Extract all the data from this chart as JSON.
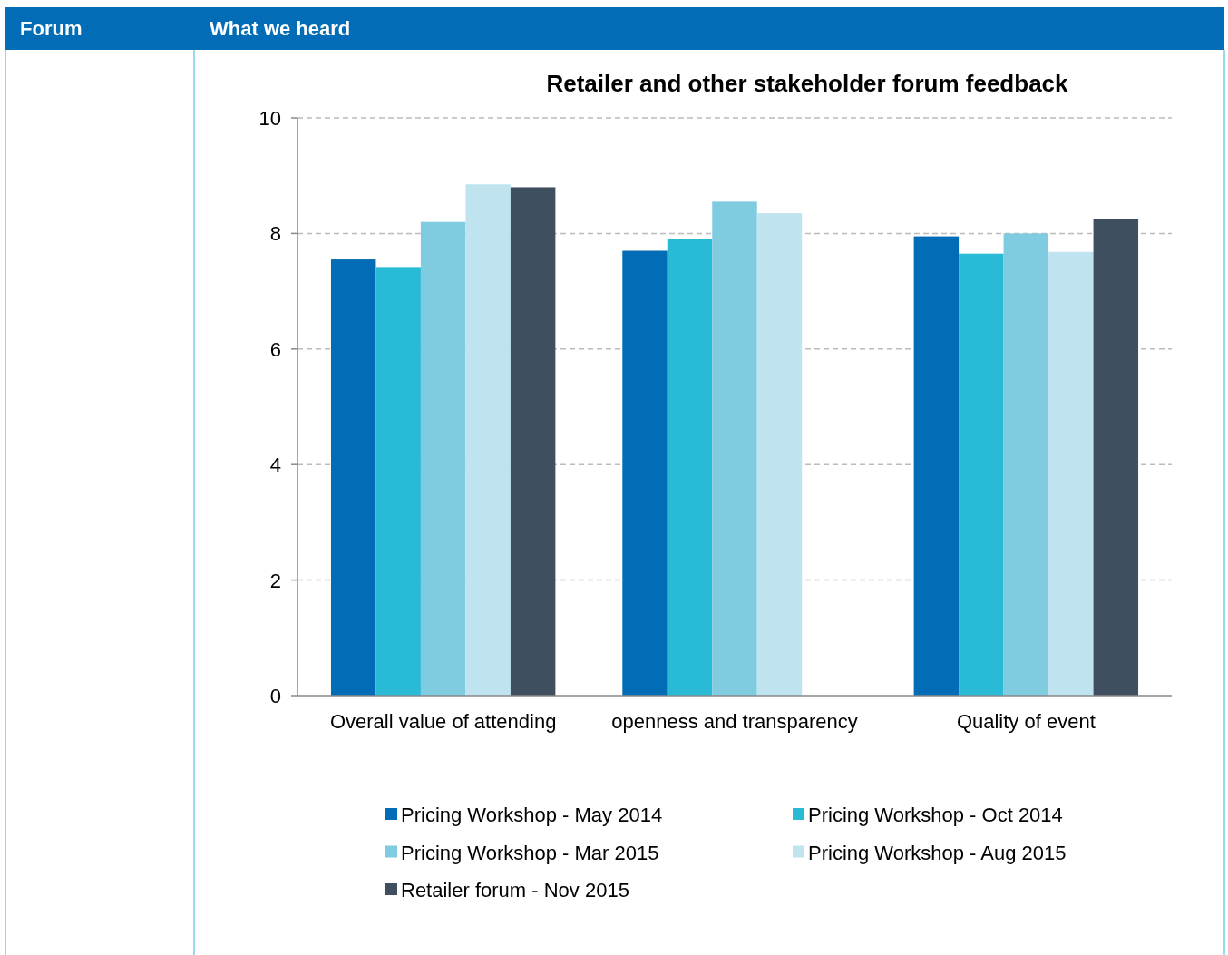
{
  "chart_data": {
    "type": "bar",
    "title": "Retailer and other stakeholder forum feedback",
    "categories": [
      "Overall value of attending",
      "openness and transparency",
      "Quality of event"
    ],
    "series": [
      {
        "name": "Pricing Workshop - May 2014",
        "color": "#036cb6",
        "values": [
          7.55,
          7.7,
          7.95
        ]
      },
      {
        "name": "Pricing Workshop - Oct 2014",
        "color": "#29bbd6",
        "values": [
          7.42,
          7.9,
          7.65
        ]
      },
      {
        "name": "Pricing Workshop - Mar 2015",
        "color": "#7fcce0",
        "values": [
          8.2,
          8.55,
          8.0
        ]
      },
      {
        "name": "Pricing Workshop - Aug 2015",
        "color": "#bfe4ef",
        "values": [
          8.85,
          8.35,
          7.68
        ]
      },
      {
        "name": "Retailer forum - Nov 2015",
        "color": "#404f60",
        "values": [
          8.8,
          null,
          8.25
        ]
      }
    ],
    "ylim": [
      0,
      10
    ],
    "yticks": [
      0,
      2,
      4,
      6,
      8,
      10
    ],
    "grid": "y",
    "legend": "bottom",
    "annotations": [
      "Forum",
      "What we heard"
    ]
  }
}
